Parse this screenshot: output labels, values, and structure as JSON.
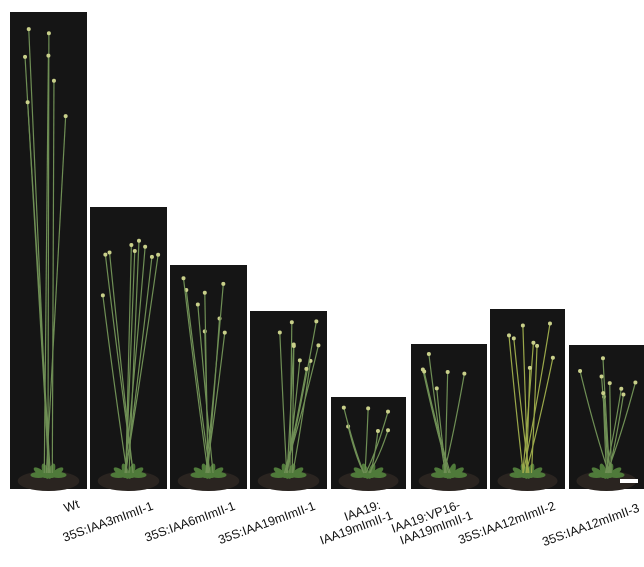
{
  "panels": [
    {
      "lines": [
        "Wt"
      ]
    },
    {
      "lines": [
        "35S:IAA3mImII-1"
      ]
    },
    {
      "lines": [
        "35S:IAA6mImII-1"
      ]
    },
    {
      "lines": [
        "35S:IAA19mImII-1"
      ]
    },
    {
      "lines": [
        "IAA19:",
        "IAA19mImII-1"
      ]
    },
    {
      "lines": [
        "IAA19:VP16-",
        "IAA19mImII-1"
      ]
    },
    {
      "lines": [
        "35S:IAA12mImII-2"
      ]
    },
    {
      "lines": [
        "35S:IAA12mImII-3"
      ]
    }
  ]
}
